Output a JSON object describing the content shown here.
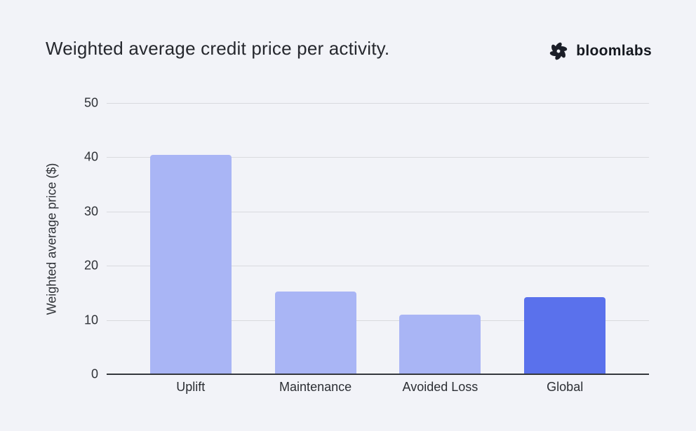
{
  "header": {
    "title": "Weighted average credit price per activity.",
    "brand": "bloomlabs",
    "logo_icon": "pinwheel-flower-icon"
  },
  "chart_data": {
    "type": "bar",
    "title": "Weighted average credit price per activity.",
    "categories": [
      "Uplift",
      "Maintenance",
      "Avoided Loss",
      "Global"
    ],
    "values": [
      40.4,
      15.3,
      11.0,
      14.2
    ],
    "bar_colors": [
      "#a9b5f5",
      "#a9b5f5",
      "#a9b5f5",
      "#5a71ec"
    ],
    "xlabel": "",
    "ylabel": "Weighted average price ($)",
    "ylim": [
      0,
      50
    ],
    "yticks": [
      0,
      10,
      20,
      30,
      40,
      50
    ],
    "grid": "horizontal",
    "legend": "none"
  },
  "colors": {
    "background": "#f2f3f8",
    "bar_light": "#a9b5f5",
    "bar_accent": "#5a71ec",
    "gridline": "#d9dade",
    "axis_line": "#34373c",
    "title_text": "#26282e",
    "tick_text": "#2f3237",
    "brand_text": "#15181f"
  }
}
